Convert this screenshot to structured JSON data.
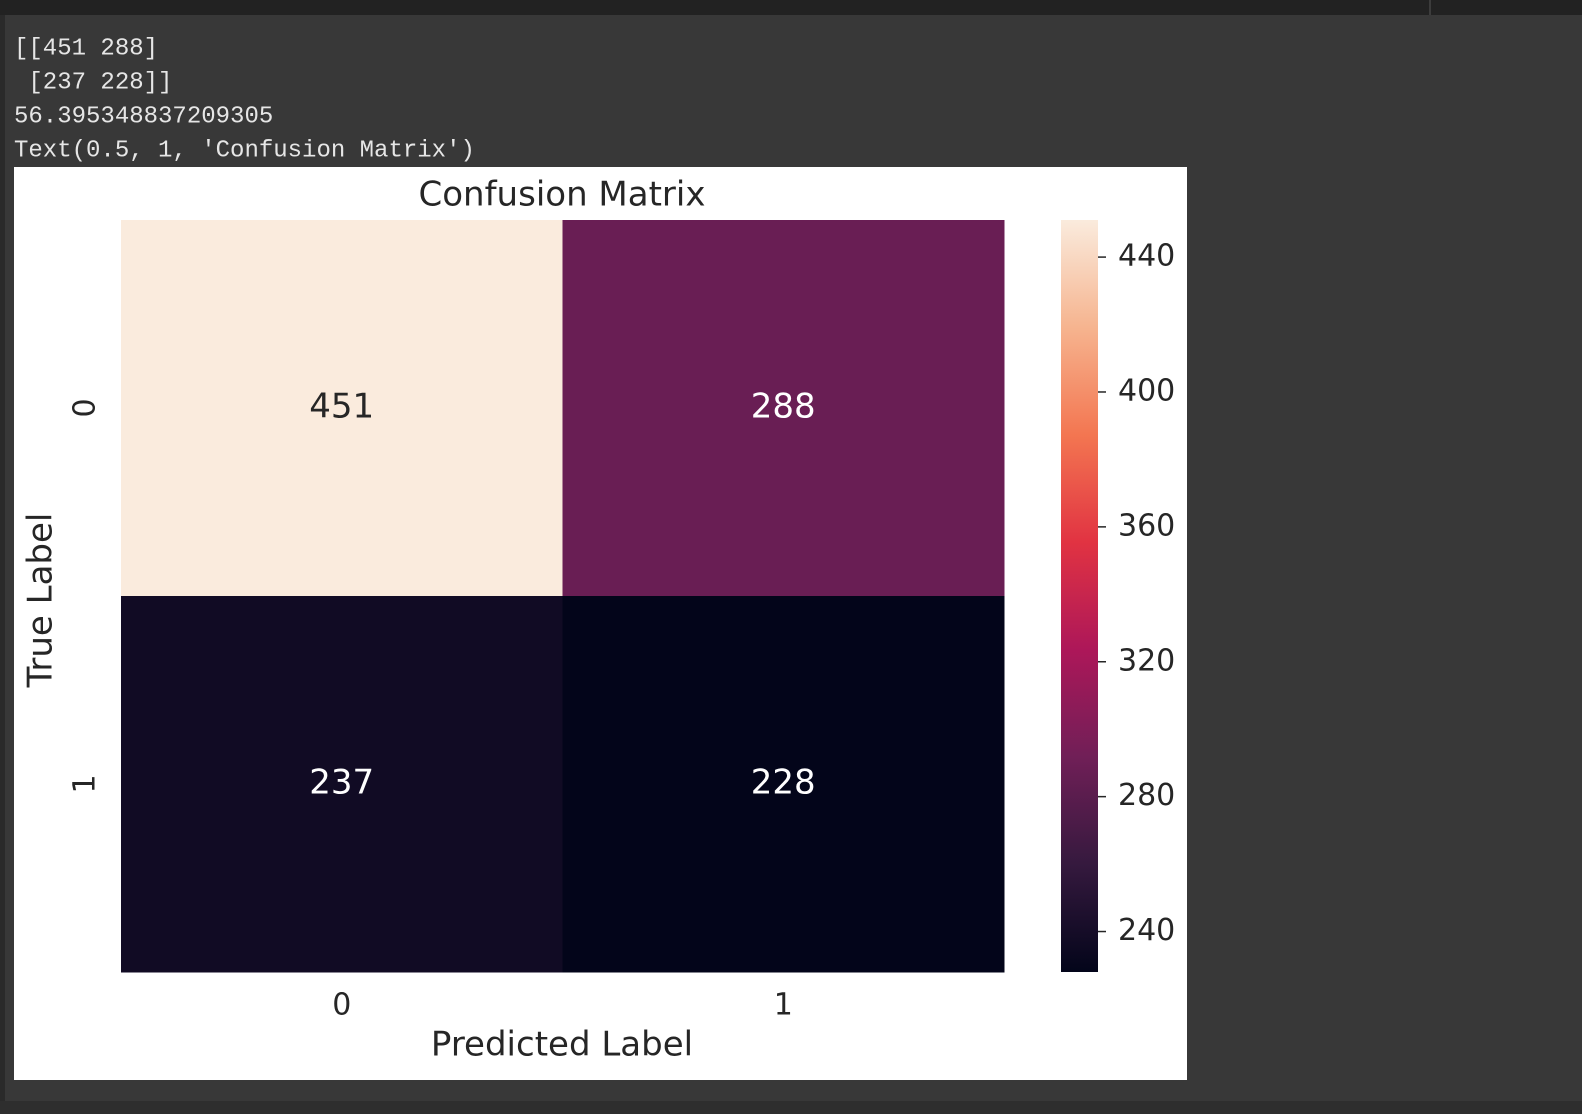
{
  "output": {
    "lines": [
      "[[451 288]",
      " [237 228]]",
      "56.395348837209305",
      "Text(0.5, 1, 'Confusion Matrix')"
    ]
  },
  "chart_data": {
    "type": "heatmap",
    "title": "Confusion Matrix",
    "x_label": "Predicted Label",
    "y_label": "True Label",
    "x_categories": [
      "0",
      "1"
    ],
    "y_categories": [
      "0",
      "1"
    ],
    "values": [
      [
        451,
        288
      ],
      [
        237,
        228
      ]
    ],
    "colorbar_lim": [
      228,
      451
    ],
    "colorbar_ticks": [
      240,
      280,
      320,
      360,
      400,
      440
    ],
    "colors": [
      "#03051a",
      "#35193e",
      "#701f57",
      "#ad1759",
      "#e13342",
      "#f37651",
      "#f6b48f",
      "#faebdd"
    ]
  }
}
